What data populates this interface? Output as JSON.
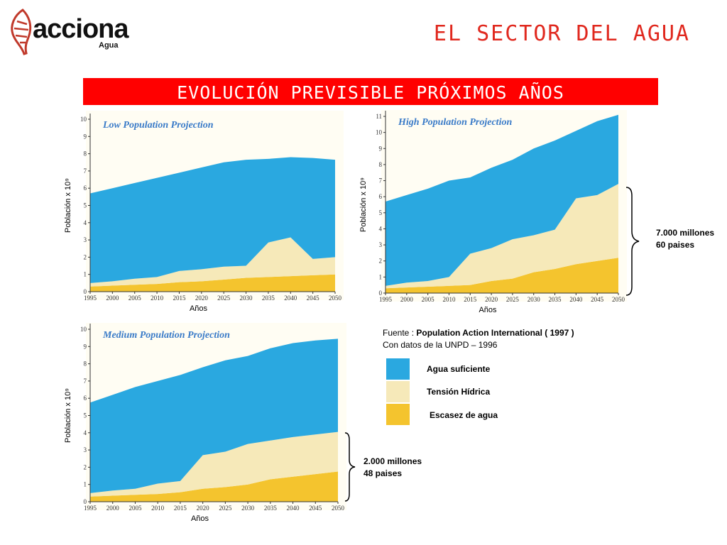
{
  "header": {
    "logo_text": "acciona",
    "logo_sub": "Agua",
    "title": "EL SECTOR DEL AGUA"
  },
  "banner": {
    "text": "EVOLUCIÓN PREVISIBLE PRÓXIMOS AÑOS"
  },
  "colors": {
    "agua_suficiente": "#2aa8e0",
    "tension_hidrica": "#f6e9b9",
    "escasez": "#f4c42e",
    "title_red": "#e0281e",
    "banner_red": "#ff0000",
    "chart_title_blue": "#3a7bc8"
  },
  "chart_data": [
    {
      "type": "area",
      "title": "Low Population Projection",
      "xlabel": "Años",
      "ylabel": "Población x 10⁹",
      "x": [
        1995,
        2000,
        2005,
        2010,
        2015,
        2020,
        2025,
        2030,
        2035,
        2040,
        2045,
        2050
      ],
      "xlim": [
        1995,
        2050
      ],
      "ylim": [
        0,
        10
      ],
      "yticks": [
        0,
        1,
        2,
        3,
        4,
        5,
        6,
        7,
        8,
        9,
        10
      ],
      "stacked": true,
      "series": [
        {
          "name": "Escasez de agua",
          "values": [
            0.3,
            0.35,
            0.4,
            0.45,
            0.55,
            0.6,
            0.7,
            0.8,
            0.85,
            0.9,
            0.95,
            1.0
          ]
        },
        {
          "name": "Tensión Hídrica",
          "values": [
            0.2,
            0.25,
            0.35,
            0.4,
            0.65,
            0.7,
            0.75,
            0.7,
            2.0,
            2.25,
            0.95,
            1.0
          ]
        },
        {
          "name": "Agua suficiente",
          "values": [
            5.2,
            5.4,
            5.55,
            5.75,
            5.7,
            5.9,
            6.05,
            6.15,
            4.85,
            4.65,
            5.85,
            5.65
          ]
        }
      ]
    },
    {
      "type": "area",
      "title": "High Population Projection",
      "xlabel": "Años",
      "ylabel": "Población x 10⁹",
      "x": [
        1995,
        2000,
        2005,
        2010,
        2015,
        2020,
        2025,
        2030,
        2035,
        2040,
        2045,
        2050
      ],
      "xlim": [
        1995,
        2050
      ],
      "ylim": [
        0,
        11
      ],
      "yticks": [
        0,
        1,
        2,
        3,
        4,
        5,
        6,
        7,
        8,
        9,
        10,
        11
      ],
      "stacked": true,
      "series": [
        {
          "name": "Escasez de agua",
          "values": [
            0.3,
            0.35,
            0.4,
            0.45,
            0.5,
            0.75,
            0.9,
            1.3,
            1.5,
            1.8,
            2.0,
            2.2
          ]
        },
        {
          "name": "Tensión Hídrica",
          "values": [
            0.15,
            0.3,
            0.35,
            0.55,
            1.95,
            2.05,
            2.45,
            2.3,
            2.45,
            4.1,
            4.1,
            4.6
          ]
        },
        {
          "name": "Agua suficiente",
          "values": [
            5.25,
            5.45,
            5.75,
            6.0,
            4.75,
            5.0,
            4.95,
            5.4,
            5.55,
            4.2,
            4.6,
            4.3
          ]
        }
      ]
    },
    {
      "type": "area",
      "title": "Medium Population Projection",
      "xlabel": "Años",
      "ylabel": "Población x 10⁹",
      "x": [
        1995,
        2000,
        2005,
        2010,
        2015,
        2020,
        2025,
        2030,
        2035,
        2040,
        2045,
        2050
      ],
      "xlim": [
        1995,
        2050
      ],
      "ylim": [
        0,
        10
      ],
      "yticks": [
        0,
        1,
        2,
        3,
        4,
        5,
        6,
        7,
        8,
        9,
        10
      ],
      "stacked": true,
      "series": [
        {
          "name": "Escasez de agua",
          "values": [
            0.3,
            0.35,
            0.4,
            0.45,
            0.55,
            0.75,
            0.85,
            1.0,
            1.3,
            1.45,
            1.6,
            1.75
          ]
        },
        {
          "name": "Tensión Hídrica",
          "values": [
            0.2,
            0.3,
            0.35,
            0.6,
            0.65,
            1.95,
            2.05,
            2.35,
            2.25,
            2.3,
            2.3,
            2.3
          ]
        },
        {
          "name": "Agua suficiente",
          "values": [
            5.25,
            5.55,
            5.9,
            5.95,
            6.15,
            5.1,
            5.3,
            5.1,
            5.35,
            5.45,
            5.45,
            5.4
          ]
        }
      ]
    }
  ],
  "source": {
    "prefix": "Fuente : ",
    "org": "Population Action International ( 1997 )",
    "line2": "Con datos de la UNPD – 1996"
  },
  "legend": [
    {
      "label": "Agua suficiente"
    },
    {
      "label": "Tensión Hídrica"
    },
    {
      "label": "Escasez de agua"
    }
  ],
  "annotations": {
    "high": {
      "line1": "7.000 millones",
      "line2": "60 paises"
    },
    "medium": {
      "line1": "2.000 millones",
      "line2": "48 paises"
    }
  }
}
